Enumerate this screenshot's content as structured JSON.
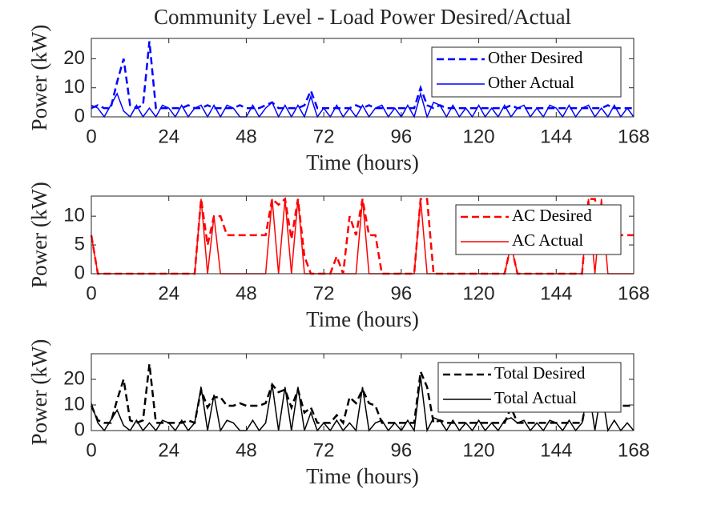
{
  "chart_data": [
    {
      "type": "line",
      "title": "Community Level - Load Power Desired/Actual",
      "xlabel": "Time (hours)",
      "ylabel": "Power (kW)",
      "x": [
        0,
        2,
        4,
        6,
        8,
        10,
        12,
        14,
        16,
        18,
        20,
        22,
        24,
        26,
        28,
        30,
        32,
        34,
        36,
        38,
        40,
        42,
        44,
        46,
        48,
        50,
        52,
        54,
        56,
        58,
        60,
        62,
        64,
        66,
        68,
        70,
        72,
        74,
        76,
        78,
        80,
        82,
        84,
        86,
        88,
        90,
        92,
        94,
        96,
        98,
        100,
        102,
        104,
        106,
        108,
        110,
        112,
        114,
        116,
        118,
        120,
        122,
        124,
        126,
        128,
        130,
        132,
        134,
        136,
        138,
        140,
        142,
        144,
        146,
        148,
        150,
        152,
        154,
        156,
        158,
        160,
        162,
        164,
        166,
        168
      ],
      "xlim": [
        0,
        168
      ],
      "xticks": [
        0,
        24,
        48,
        72,
        96,
        120,
        144,
        168
      ],
      "ylim": [
        0,
        27
      ],
      "yticks": [
        0,
        10,
        20
      ],
      "legend": "upper right",
      "series": [
        {
          "name": "Other Desired",
          "color": "#0000ff",
          "line_style": "dashed",
          "values": [
            3,
            4,
            3,
            3,
            12,
            20,
            4,
            3,
            4,
            26,
            3,
            3,
            3,
            3,
            3,
            4,
            3,
            3,
            4,
            3,
            3,
            3,
            3,
            4,
            3,
            3,
            3,
            4,
            5,
            3,
            3,
            3,
            3,
            4,
            9,
            3,
            3,
            3,
            3,
            3,
            3,
            4,
            3,
            4,
            3,
            3,
            3,
            3,
            3,
            3,
            3,
            10,
            4,
            3,
            4,
            3,
            3,
            3,
            3,
            3,
            3,
            3,
            3,
            3,
            3,
            4,
            3,
            3,
            3,
            3,
            3,
            3,
            3,
            3,
            3,
            3,
            3,
            3,
            3,
            3,
            4,
            3,
            3,
            3,
            3
          ]
        },
        {
          "name": "Other Actual",
          "color": "#0000ff",
          "line_style": "solid",
          "values": [
            4,
            3,
            0,
            4,
            8,
            2,
            0,
            4,
            0,
            3,
            0,
            4,
            3,
            0,
            4,
            0,
            3,
            4,
            0,
            4,
            0,
            4,
            3,
            0,
            0,
            4,
            0,
            3,
            5,
            0,
            4,
            0,
            4,
            0,
            7,
            0,
            3,
            0,
            4,
            0,
            3,
            0,
            4,
            0,
            3,
            4,
            0,
            3,
            0,
            4,
            0,
            8,
            0,
            5,
            4,
            0,
            4,
            0,
            3,
            0,
            4,
            0,
            3,
            0,
            4,
            0,
            3,
            4,
            0,
            3,
            0,
            4,
            3,
            0,
            4,
            0,
            3,
            4,
            0,
            3,
            0,
            4,
            0,
            3,
            0
          ]
        }
      ]
    },
    {
      "type": "line",
      "xlabel": "Time (hours)",
      "ylabel": "Power (kW)",
      "x": [
        0,
        2,
        4,
        6,
        8,
        10,
        12,
        14,
        16,
        18,
        20,
        22,
        24,
        26,
        28,
        30,
        32,
        34,
        36,
        38,
        40,
        42,
        44,
        46,
        48,
        50,
        52,
        54,
        56,
        58,
        60,
        62,
        64,
        66,
        68,
        70,
        72,
        74,
        76,
        78,
        80,
        82,
        84,
        86,
        88,
        90,
        92,
        94,
        96,
        98,
        100,
        102,
        104,
        106,
        108,
        110,
        112,
        114,
        116,
        118,
        120,
        122,
        124,
        126,
        128,
        130,
        132,
        134,
        136,
        138,
        140,
        142,
        144,
        146,
        148,
        150,
        152,
        154,
        156,
        158,
        160,
        162,
        164,
        166,
        168
      ],
      "xlim": [
        0,
        168
      ],
      "xticks": [
        0,
        24,
        48,
        72,
        96,
        120,
        144,
        168
      ],
      "ylim": [
        0,
        13.5
      ],
      "yticks": [
        0,
        5,
        10
      ],
      "legend": "upper right",
      "series": [
        {
          "name": "AC Desired",
          "color": "#ff0000",
          "line_style": "dashed",
          "values": [
            6.7,
            0,
            0,
            0,
            0,
            0,
            0,
            0,
            0,
            0,
            0,
            0,
            0,
            0,
            0,
            0,
            0,
            13,
            5,
            10,
            10,
            6.7,
            6.7,
            6.7,
            6.7,
            6.7,
            6.7,
            6.7,
            13,
            12,
            13,
            6,
            13,
            3,
            0,
            0,
            0,
            0,
            3,
            0,
            10,
            6.7,
            13,
            6.7,
            6.7,
            0,
            0,
            0,
            0,
            0,
            0,
            13,
            13,
            0,
            0,
            0,
            0,
            0,
            0,
            0,
            0,
            0,
            0,
            0,
            0,
            5,
            0,
            0,
            0,
            0,
            0,
            0,
            0,
            0,
            0,
            0,
            0,
            13,
            13,
            6.7,
            6.7,
            6.7,
            6.7,
            6.7,
            6.7
          ]
        },
        {
          "name": "AC Actual",
          "color": "#ff0000",
          "line_style": "solid",
          "values": [
            6.7,
            0,
            0,
            0,
            0,
            0,
            0,
            0,
            0,
            0,
            0,
            0,
            0,
            0,
            0,
            0,
            0,
            13,
            0,
            10,
            0,
            0,
            0,
            0,
            0,
            0,
            0,
            0,
            13,
            0,
            13,
            0,
            13,
            0,
            0,
            0,
            0,
            0,
            0,
            0,
            0,
            0,
            13,
            0,
            0,
            0,
            0,
            0,
            0,
            0,
            0,
            13,
            0,
            0,
            0,
            0,
            0,
            0,
            0,
            0,
            0,
            0,
            0,
            0,
            0,
            5,
            0,
            0,
            0,
            0,
            0,
            0,
            0,
            0,
            0,
            0,
            0,
            13,
            0,
            13,
            0,
            0,
            0,
            0,
            0
          ]
        }
      ]
    },
    {
      "type": "line",
      "xlabel": "Time (hours)",
      "ylabel": "Power (kW)",
      "x": [
        0,
        2,
        4,
        6,
        8,
        10,
        12,
        14,
        16,
        18,
        20,
        22,
        24,
        26,
        28,
        30,
        32,
        34,
        36,
        38,
        40,
        42,
        44,
        46,
        48,
        50,
        52,
        54,
        56,
        58,
        60,
        62,
        64,
        66,
        68,
        70,
        72,
        74,
        76,
        78,
        80,
        82,
        84,
        86,
        88,
        90,
        92,
        94,
        96,
        98,
        100,
        102,
        104,
        106,
        108,
        110,
        112,
        114,
        116,
        118,
        120,
        122,
        124,
        126,
        128,
        130,
        132,
        134,
        136,
        138,
        140,
        142,
        144,
        146,
        148,
        150,
        152,
        154,
        156,
        158,
        160,
        162,
        164,
        166,
        168
      ],
      "xlim": [
        0,
        168
      ],
      "xticks": [
        0,
        24,
        48,
        72,
        96,
        120,
        144,
        168
      ],
      "ylim": [
        0,
        30
      ],
      "yticks": [
        0,
        10,
        20
      ],
      "legend": "upper right",
      "series": [
        {
          "name": "Total Desired",
          "color": "#000000",
          "line_style": "dashed",
          "values": [
            9.7,
            4,
            3,
            3,
            12,
            20,
            4,
            3,
            4,
            26,
            3,
            3,
            3,
            3,
            3,
            4,
            3,
            16,
            9,
            13,
            13,
            9.7,
            9.7,
            10.7,
            9.7,
            9.7,
            9.7,
            10.7,
            18,
            15,
            16,
            9,
            16,
            7,
            9,
            3,
            3,
            3,
            6,
            3,
            13,
            10.7,
            16,
            10.7,
            9.7,
            3,
            3,
            3,
            3,
            3,
            3,
            23,
            17,
            3,
            4,
            3,
            3,
            3,
            3,
            3,
            3,
            3,
            3,
            3,
            3,
            9,
            3,
            3,
            3,
            3,
            3,
            3,
            3,
            3,
            3,
            3,
            3,
            16,
            16,
            9.7,
            10.7,
            9.7,
            9.7,
            9.7,
            9.7
          ]
        },
        {
          "name": "Total Actual",
          "color": "#000000",
          "line_style": "solid",
          "values": [
            10.7,
            3,
            0,
            4,
            8,
            2,
            0,
            4,
            0,
            3,
            0,
            4,
            3,
            0,
            4,
            0,
            3,
            17,
            0,
            14,
            0,
            4,
            3,
            0,
            0,
            4,
            0,
            3,
            18,
            0,
            17,
            0,
            17,
            0,
            7,
            0,
            3,
            0,
            4,
            0,
            3,
            0,
            17,
            0,
            3,
            4,
            0,
            3,
            0,
            4,
            0,
            21,
            0,
            5,
            4,
            0,
            4,
            0,
            3,
            0,
            4,
            0,
            3,
            0,
            4,
            5,
            3,
            4,
            0,
            3,
            0,
            4,
            3,
            0,
            4,
            0,
            3,
            17,
            0,
            16,
            0,
            4,
            0,
            3,
            0
          ]
        }
      ]
    }
  ]
}
